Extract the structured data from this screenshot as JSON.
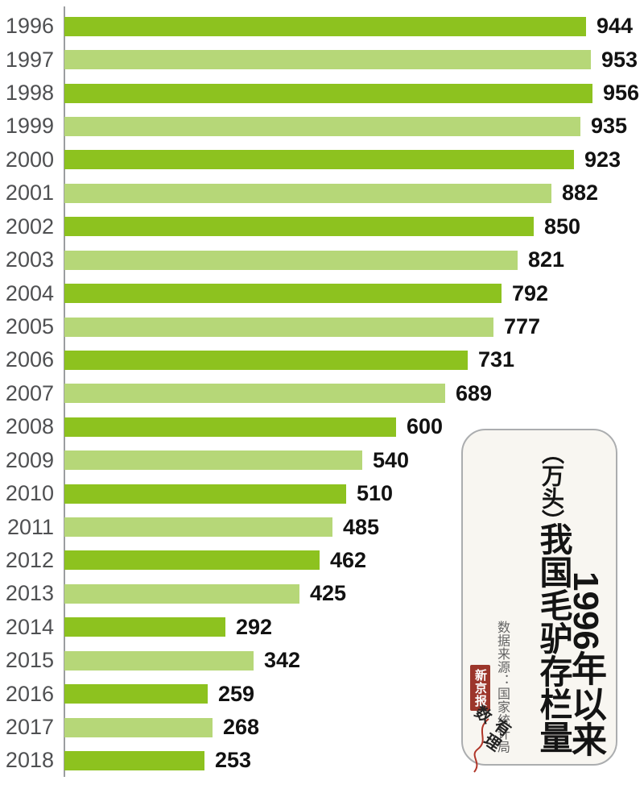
{
  "page": {
    "background": "#FFFFFF"
  },
  "chart_data": {
    "type": "bar",
    "orientation": "horizontal",
    "title": "1996年以来我国毛驴存栏量",
    "unit": "万头",
    "categories": [
      "1996",
      "1997",
      "1998",
      "1999",
      "2000",
      "2001",
      "2002",
      "2003",
      "2004",
      "2005",
      "2006",
      "2007",
      "2008",
      "2009",
      "2010",
      "2011",
      "2012",
      "2013",
      "2014",
      "2015",
      "2016",
      "2017",
      "2018"
    ],
    "values": [
      944,
      953,
      956,
      935,
      923,
      882,
      850,
      821,
      792,
      777,
      731,
      689,
      600,
      540,
      510,
      485,
      462,
      425,
      292,
      342,
      259,
      268,
      253
    ],
    "xlim": [
      0,
      985
    ],
    "grid": false,
    "legend": false,
    "bar_colors_alternate": [
      "#8DC21F",
      "#B6D778"
    ],
    "axis_color": "#9B9DA0",
    "source": "数据来源：国家统计局"
  },
  "panel": {
    "title_right": "1996年以来",
    "title_main": "我国毛驴存栏量",
    "unit_label": "（万头）",
    "source_label": "数据来源：国家统计局",
    "logo_text": "新京报",
    "brand_script": "有理数",
    "bg_color": "#F8F6F1",
    "logo_red": "#9C362B"
  }
}
